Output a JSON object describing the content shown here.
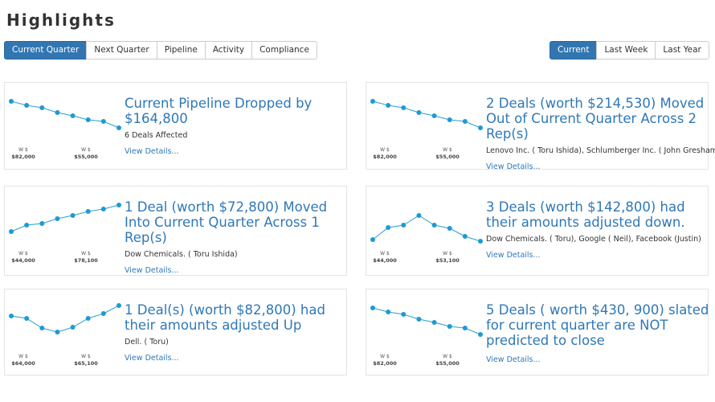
{
  "header": {
    "title": "Highlights"
  },
  "tabs": [
    {
      "label": "Current Quarter",
      "active": true
    },
    {
      "label": "Next Quarter",
      "active": false
    },
    {
      "label": "Pipeline",
      "active": false
    },
    {
      "label": "Activity",
      "active": false
    },
    {
      "label": "Compliance",
      "active": false
    }
  ],
  "periods": [
    {
      "label": "Current",
      "active": true
    },
    {
      "label": "Last Week",
      "active": false
    },
    {
      "label": "Last Year",
      "active": false
    }
  ],
  "cards": [
    {
      "title": "Current Pipeline Dropped by $164,800",
      "subtitle": "6 Deals Affected",
      "link": "View Details...",
      "sparkline": {
        "values": [
          45,
          40,
          37,
          31,
          27,
          22,
          20,
          12
        ],
        "labels": [
          {
            "caption": "W $",
            "amount": "$82,000"
          },
          {
            "caption": "W $",
            "amount": "$55,000"
          }
        ]
      }
    },
    {
      "title": "2 Deals (worth $214,530) Moved Out of Current Quarter Across 2 Rep(s)",
      "subtitle": "Lenovo Inc. ( Toru Ishida), Schlumberger Inc. ( John Gresham)",
      "link": "View Details...",
      "sparkline": {
        "values": [
          45,
          40,
          37,
          31,
          27,
          22,
          20,
          12
        ],
        "labels": [
          {
            "caption": "W $",
            "amount": "$82,000"
          },
          {
            "caption": "W $",
            "amount": "$55,000"
          }
        ]
      }
    },
    {
      "title": "1 Deal (worth $72,800) Moved Into Current Quarter Across 1 Rep(s)",
      "subtitle": "Dow Chemicals. ( Toru Ishida)",
      "link": "View Details...",
      "sparkline": {
        "values": [
          12,
          20,
          22,
          28,
          32,
          37,
          40,
          45
        ],
        "labels": [
          {
            "caption": "W $",
            "amount": "$44,000"
          },
          {
            "caption": "W $",
            "amount": "$78,100"
          }
        ]
      }
    },
    {
      "title": "3 Deals (worth $142,800) had their amounts adjusted down.",
      "subtitle": "Dow Chemicals. ( Toru), Google ( Neil), Facebook (Justin)",
      "link": "View Details...",
      "sparkline": {
        "values": [
          2,
          17,
          20,
          32,
          20,
          16,
          6,
          0
        ],
        "labels": [
          {
            "caption": "W $",
            "amount": "$44,000"
          },
          {
            "caption": "W $",
            "amount": "$53,100"
          }
        ]
      }
    },
    {
      "title": "1 Deal(s) (worth $82,800) had their amounts adjusted Up",
      "subtitle": "Dell. ( Toru)",
      "link": "View Details...",
      "sparkline": {
        "values": [
          35,
          32,
          20,
          15,
          21,
          32,
          38,
          48
        ],
        "labels": [
          {
            "caption": "W $",
            "amount": "$64,000"
          },
          {
            "caption": "W $",
            "amount": "$65,100"
          }
        ]
      }
    },
    {
      "title": "5 Deals ( worth $430, 900) slated for current quarter are NOT predicted to close",
      "link": "View Details...",
      "sparkline": {
        "values": [
          45,
          40,
          37,
          31,
          27,
          22,
          20,
          12
        ],
        "labels": [
          {
            "caption": "W $",
            "amount": "$82,000"
          },
          {
            "caption": "W $",
            "amount": "$55,000"
          }
        ]
      }
    }
  ]
}
